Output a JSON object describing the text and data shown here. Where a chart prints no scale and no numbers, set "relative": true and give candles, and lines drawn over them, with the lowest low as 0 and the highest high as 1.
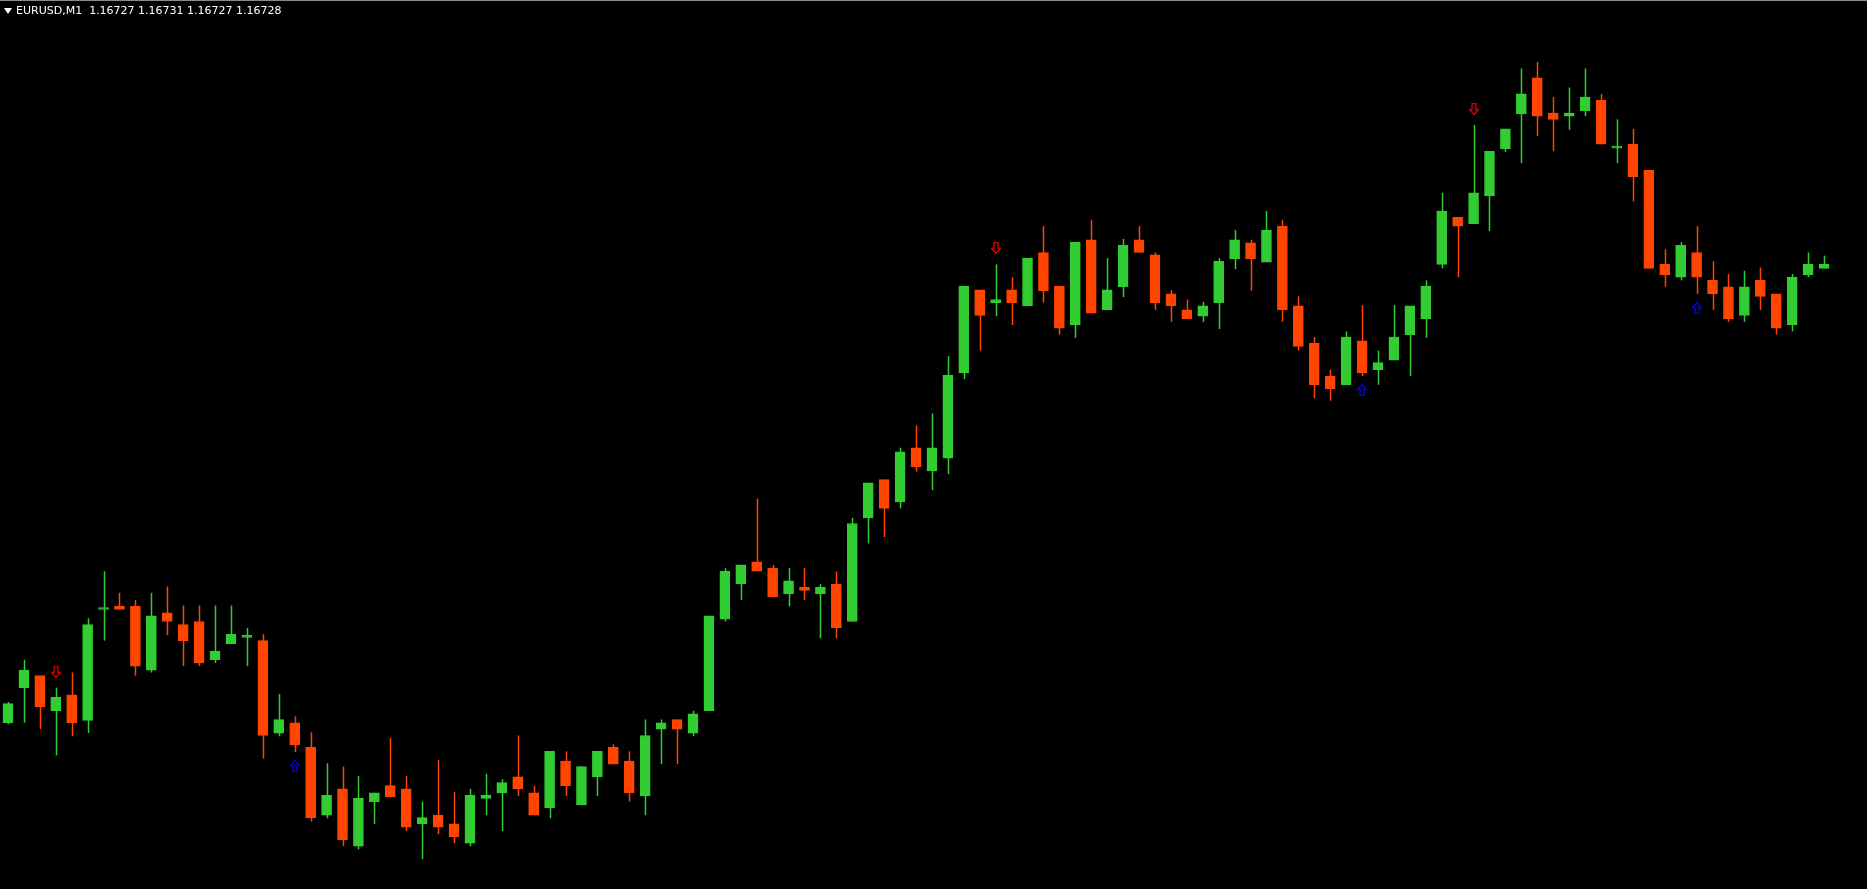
{
  "chart_data": {
    "type": "candlestick",
    "title": "EURUSD,M1  1.16727 1.16731 1.16727 1.16728",
    "relative": true,
    "legend": false,
    "categories": [
      null,
      null,
      null,
      null,
      null,
      null,
      null,
      null,
      null,
      null,
      null,
      null,
      null,
      null,
      null,
      null,
      null,
      null,
      null,
      null,
      null,
      null,
      null,
      null,
      null,
      null,
      null,
      null,
      null,
      null,
      null,
      null,
      null,
      null,
      null,
      null,
      null,
      null,
      null,
      null,
      null,
      null,
      null,
      null,
      null,
      null,
      null,
      null,
      null,
      null,
      null,
      null,
      null,
      null,
      null,
      null,
      null,
      null,
      null,
      null,
      null,
      null,
      null,
      null,
      null,
      null,
      null,
      null,
      null,
      null,
      null,
      null,
      null,
      null,
      null,
      null,
      null,
      null,
      null,
      null,
      null,
      null,
      null,
      null,
      null,
      null,
      null,
      null,
      null,
      null,
      null,
      null,
      null,
      null,
      null,
      null,
      null,
      null,
      null,
      null,
      null,
      null,
      null,
      null,
      null,
      null,
      null,
      null,
      null,
      null,
      null,
      null,
      null,
      null,
      null
    ],
    "ohlc": [
      [
        0.171,
        0.197,
        0.169,
        0.195
      ],
      [
        0.215,
        0.25,
        0.171,
        0.237
      ],
      [
        0.23,
        0.23,
        0.163,
        0.191
      ],
      [
        0.186,
        0.215,
        0.13,
        0.203
      ],
      [
        0.206,
        0.234,
        0.154,
        0.171
      ],
      [
        0.174,
        0.302,
        0.158,
        0.294
      ],
      [
        0.313,
        0.361,
        0.274,
        0.313
      ],
      [
        0.317,
        0.334,
        0.313,
        0.313
      ],
      [
        0.317,
        0.325,
        0.23,
        0.242
      ],
      [
        0.237,
        0.334,
        0.234,
        0.305
      ],
      [
        0.309,
        0.342,
        0.281,
        0.298
      ],
      [
        0.294,
        0.318,
        0.242,
        0.274
      ],
      [
        0.298,
        0.318,
        0.242,
        0.246
      ],
      [
        0.25,
        0.318,
        0.246,
        0.261
      ],
      [
        0.27,
        0.318,
        0.27,
        0.282
      ],
      [
        0.278,
        0.29,
        0.242,
        0.278
      ],
      [
        0.274,
        0.282,
        0.126,
        0.155
      ],
      [
        0.158,
        0.207,
        0.154,
        0.175
      ],
      [
        0.171,
        0.179,
        0.134,
        0.143
      ],
      [
        0.14,
        0.159,
        0.047,
        0.052
      ],
      [
        0.055,
        0.12,
        0.051,
        0.08
      ],
      [
        0.088,
        0.116,
        0.016,
        0.024
      ],
      [
        0.016,
        0.104,
        0.012,
        0.076
      ],
      [
        0.072,
        0.083,
        0.044,
        0.083
      ],
      [
        0.092,
        0.152,
        0.078,
        0.078
      ],
      [
        0.088,
        0.104,
        0.035,
        0.04
      ],
      [
        0.044,
        0.072,
        0,
        0.052
      ],
      [
        0.055,
        0.124,
        0.031,
        0.04
      ],
      [
        0.044,
        0.084,
        0.02,
        0.028
      ],
      [
        0.02,
        0.088,
        0.016,
        0.08
      ],
      [
        0.076,
        0.107,
        0.055,
        0.08
      ],
      [
        0.083,
        0.1,
        0.035,
        0.096
      ],
      [
        0.103,
        0.155,
        0.079,
        0.088
      ],
      [
        0.083,
        0.092,
        0.055,
        0.055
      ],
      [
        0.064,
        0.135,
        0.051,
        0.135
      ],
      [
        0.123,
        0.135,
        0.079,
        0.092
      ],
      [
        0.068,
        0.116,
        0.068,
        0.116
      ],
      [
        0.103,
        0.135,
        0.079,
        0.135
      ],
      [
        0.14,
        0.144,
        0.119,
        0.119
      ],
      [
        0.123,
        0.135,
        0.072,
        0.083
      ],
      [
        0.079,
        0.175,
        0.055,
        0.155
      ],
      [
        0.163,
        0.175,
        0.119,
        0.171
      ],
      [
        0.175,
        0.175,
        0.119,
        0.163
      ],
      [
        0.158,
        0.186,
        0.154,
        0.182
      ],
      [
        0.186,
        0.305,
        0.186,
        0.305
      ],
      [
        0.301,
        0.365,
        0.298,
        0.361
      ],
      [
        0.345,
        0.369,
        0.325,
        0.369
      ],
      [
        0.373,
        0.452,
        0.361,
        0.361
      ],
      [
        0.365,
        0.369,
        0.329,
        0.329
      ],
      [
        0.333,
        0.365,
        0.317,
        0.349
      ],
      [
        0.341,
        0.365,
        0.325,
        0.337
      ],
      [
        0.333,
        0.345,
        0.277,
        0.341
      ],
      [
        0.345,
        0.361,
        0.277,
        0.29
      ],
      [
        0.298,
        0.428,
        0.298,
        0.421
      ],
      [
        0.428,
        0.472,
        0.396,
        0.472
      ],
      [
        0.476,
        0.476,
        0.404,
        0.44
      ],
      [
        0.448,
        0.516,
        0.44,
        0.511
      ],
      [
        0.516,
        0.544,
        0.486,
        0.492
      ],
      [
        0.487,
        0.559,
        0.463,
        0.516
      ],
      [
        0.503,
        0.631,
        0.483,
        0.607
      ],
      [
        0.61,
        0.719,
        0.602,
        0.719
      ],
      [
        0.714,
        0.714,
        0.638,
        0.682
      ],
      [
        0.698,
        0.746,
        0.681,
        0.702
      ],
      [
        0.714,
        0.73,
        0.67,
        0.698
      ],
      [
        0.694,
        0.754,
        0.694,
        0.754
      ],
      [
        0.761,
        0.794,
        0.698,
        0.713
      ],
      [
        0.719,
        0.719,
        0.658,
        0.666
      ],
      [
        0.67,
        0.774,
        0.654,
        0.774
      ],
      [
        0.777,
        0.802,
        0.685,
        0.685
      ],
      [
        0.689,
        0.754,
        0.689,
        0.714
      ],
      [
        0.718,
        0.778,
        0.705,
        0.77
      ],
      [
        0.777,
        0.794,
        0.761,
        0.761
      ],
      [
        0.758,
        0.761,
        0.689,
        0.698
      ],
      [
        0.709,
        0.714,
        0.674,
        0.694
      ],
      [
        0.689,
        0.702,
        0.678,
        0.678
      ],
      [
        0.681,
        0.699,
        0.674,
        0.694
      ],
      [
        0.698,
        0.754,
        0.665,
        0.75
      ],
      [
        0.753,
        0.789,
        0.74,
        0.777
      ],
      [
        0.773,
        0.777,
        0.713,
        0.753
      ],
      [
        0.749,
        0.813,
        0.749,
        0.789
      ],
      [
        0.794,
        0.802,
        0.674,
        0.689
      ],
      [
        0.694,
        0.706,
        0.638,
        0.643
      ],
      [
        0.647,
        0.655,
        0.578,
        0.595
      ],
      [
        0.606,
        0.614,
        0.575,
        0.59
      ],
      [
        0.595,
        0.662,
        0.595,
        0.655
      ],
      [
        0.65,
        0.695,
        0.606,
        0.61
      ],
      [
        0.614,
        0.638,
        0.595,
        0.623
      ],
      [
        0.626,
        0.695,
        0.626,
        0.655
      ],
      [
        0.658,
        0.694,
        0.606,
        0.694
      ],
      [
        0.678,
        0.726,
        0.654,
        0.719
      ],
      [
        0.746,
        0.836,
        0.741,
        0.813
      ],
      [
        0.805,
        0.805,
        0.73,
        0.794
      ],
      [
        0.797,
        0.921,
        0.797,
        0.836
      ],
      [
        0.832,
        0.888,
        0.788,
        0.888
      ],
      [
        0.891,
        0.916,
        0.887,
        0.916
      ],
      [
        0.935,
        0.992,
        0.873,
        0.96
      ],
      [
        0.98,
        1,
        0.907,
        0.932
      ],
      [
        0.936,
        0.956,
        0.888,
        0.928
      ],
      [
        0.932,
        0.968,
        0.915,
        0.936
      ],
      [
        0.939,
        0.992,
        0.932,
        0.956
      ],
      [
        0.952,
        0.96,
        0.897,
        0.897
      ],
      [
        0.892,
        0.928,
        0.873,
        0.892
      ],
      [
        0.897,
        0.916,
        0.825,
        0.856
      ],
      [
        0.864,
        0.864,
        0.741,
        0.741
      ],
      [
        0.746,
        0.765,
        0.718,
        0.733
      ],
      [
        0.73,
        0.774,
        0.726,
        0.77
      ],
      [
        0.761,
        0.794,
        0.709,
        0.73
      ],
      [
        0.726,
        0.75,
        0.689,
        0.709
      ],
      [
        0.718,
        0.734,
        0.674,
        0.678
      ],
      [
        0.682,
        0.738,
        0.674,
        0.718
      ],
      [
        0.726,
        0.742,
        0.689,
        0.706
      ],
      [
        0.709,
        0.709,
        0.658,
        0.666
      ],
      [
        0.67,
        0.734,
        0.662,
        0.73
      ],
      [
        0.733,
        0.761,
        0.73,
        0.746
      ],
      [
        0.741,
        0.757,
        0.741,
        0.746
      ]
    ],
    "colors": [
      "#32cd32",
      "#32cd32",
      "#ff4500",
      "#32cd32",
      "#ff4500",
      "#32cd32",
      "#32cd32",
      "#ff4500",
      "#ff4500",
      "#32cd32",
      "#ff4500",
      "#ff4500",
      "#ff4500",
      "#32cd32",
      "#32cd32",
      "#32cd32",
      "#ff4500",
      "#32cd32",
      "#ff4500",
      "#ff4500",
      "#32cd32",
      "#ff4500",
      "#32cd32",
      "#32cd32",
      "#ff4500",
      "#ff4500",
      "#32cd32",
      "#ff4500",
      "#ff4500",
      "#32cd32",
      "#32cd32",
      "#32cd32",
      "#ff4500",
      "#ff4500",
      "#32cd32",
      "#ff4500",
      "#32cd32",
      "#32cd32",
      "#ff4500",
      "#ff4500",
      "#32cd32",
      "#32cd32",
      "#ff4500",
      "#32cd32",
      "#32cd32",
      "#32cd32",
      "#32cd32",
      "#ff4500",
      "#ff4500",
      "#32cd32",
      "#ff4500",
      "#32cd32",
      "#ff4500",
      "#32cd32",
      "#32cd32",
      "#ff4500",
      "#32cd32",
      "#ff4500",
      "#32cd32",
      "#32cd32",
      "#32cd32",
      "#ff4500",
      "#32cd32",
      "#ff4500",
      "#32cd32",
      "#ff4500",
      "#ff4500",
      "#32cd32",
      "#ff4500",
      "#32cd32",
      "#32cd32",
      "#ff4500",
      "#ff4500",
      "#ff4500",
      "#ff4500",
      "#32cd32",
      "#32cd32",
      "#32cd32",
      "#ff4500",
      "#32cd32",
      "#ff4500",
      "#ff4500",
      "#ff4500",
      "#ff4500",
      "#32cd32",
      "#ff4500",
      "#32cd32",
      "#32cd32",
      "#32cd32",
      "#32cd32",
      "#32cd32",
      "#ff4500",
      "#32cd32",
      "#32cd32",
      "#32cd32",
      "#32cd32",
      "#ff4500",
      "#ff4500",
      "#32cd32",
      "#32cd32",
      "#ff4500",
      "#32cd32",
      "#ff4500",
      "#ff4500",
      "#ff4500",
      "#32cd32",
      "#ff4500",
      "#ff4500",
      "#ff4500",
      "#32cd32",
      "#ff4500",
      "#ff4500",
      "#32cd32",
      "#32cd32",
      "#32cd32"
    ]
  }
}
